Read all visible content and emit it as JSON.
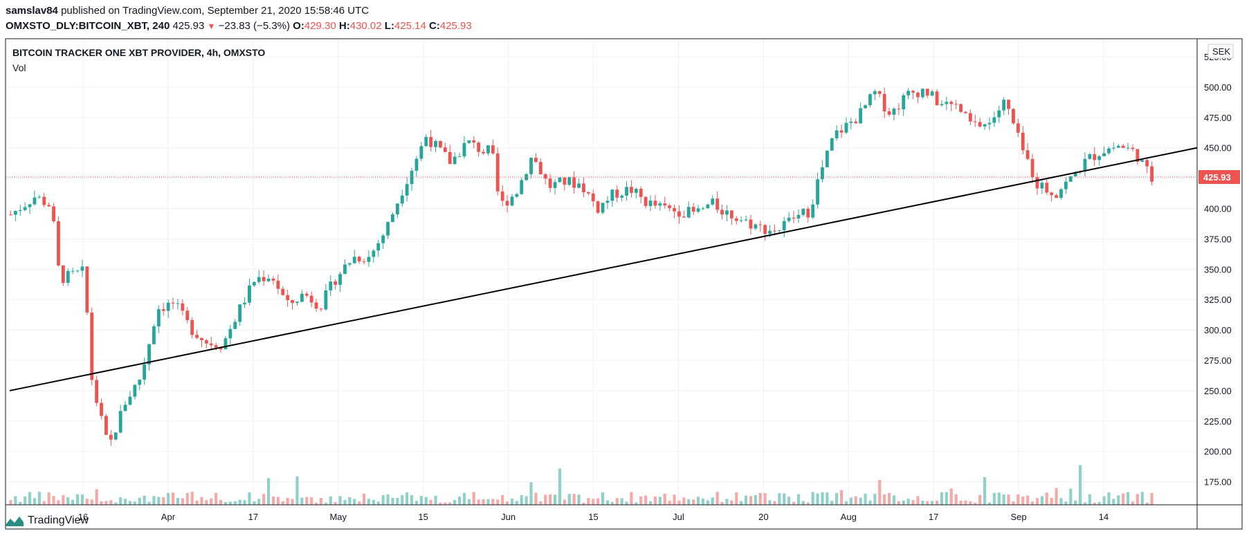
{
  "header": {
    "user": "samslav84",
    "published_text": "published on TradingView.com, September 21, 2020 15:58:46 UTC",
    "symbol": "OMXSTO_DLY:BITCOIN_XBT, 240",
    "last": "425.93",
    "change": "−23.83 (−5.3%)",
    "open_label": "O:",
    "open": "429.30",
    "high_label": "H:",
    "high": "430.02",
    "low_label": "L:",
    "low": "425.14",
    "close_label": "C:",
    "close": "425.93"
  },
  "pane": {
    "title": "BITCOIN TRACKER ONE XBT PROVIDER, 4h, OMXSTO",
    "indicator": "Vol",
    "currency": "SEK",
    "last_price_label": "425.93"
  },
  "colors": {
    "up": "#26a69a",
    "down": "#ef5350",
    "grid": "#edf0f4",
    "axis": "#131722"
  },
  "brand": {
    "name": "TradingView",
    "icon": "tradingview-logo-icon"
  },
  "chart_data": {
    "type": "candlestick",
    "title": "BITCOIN TRACKER ONE XBT PROVIDER, 4h, OMXSTO",
    "ylim": [
      156,
      533
    ],
    "y_ticks": [
      "525.00",
      "500.00",
      "475.00",
      "450.00",
      "425.00",
      "400.00",
      "375.00",
      "350.00",
      "325.00",
      "300.00",
      "275.00",
      "250.00",
      "225.00",
      "200.00",
      "175.00"
    ],
    "x_ticks": [
      "16",
      "Apr",
      "17",
      "May",
      "15",
      "Jun",
      "15",
      "Jul",
      "20",
      "Aug",
      "17",
      "Sep",
      "14"
    ],
    "last_price": 425.93,
    "price_path": [
      [
        0,
        395
      ],
      [
        3,
        410
      ],
      [
        5,
        402
      ],
      [
        6,
        342
      ],
      [
        9,
        348
      ],
      [
        10,
        256
      ],
      [
        12,
        202
      ],
      [
        14,
        240
      ],
      [
        16,
        262
      ],
      [
        18,
        318
      ],
      [
        20,
        322
      ],
      [
        22,
        302
      ],
      [
        24,
        290
      ],
      [
        26,
        288
      ],
      [
        28,
        316
      ],
      [
        30,
        342
      ],
      [
        32,
        345
      ],
      [
        34,
        320
      ],
      [
        36,
        330
      ],
      [
        38,
        320
      ],
      [
        40,
        344
      ],
      [
        42,
        360
      ],
      [
        44,
        360
      ],
      [
        46,
        382
      ],
      [
        48,
        415
      ],
      [
        51,
        460
      ],
      [
        52,
        452
      ],
      [
        54,
        438
      ],
      [
        56,
        455
      ],
      [
        58,
        447
      ],
      [
        59,
        448
      ],
      [
        60,
        402
      ],
      [
        62,
        413
      ],
      [
        64,
        444
      ],
      [
        66,
        418
      ],
      [
        68,
        422
      ],
      [
        70,
        420
      ],
      [
        72,
        400
      ],
      [
        74,
        412
      ],
      [
        76,
        416
      ],
      [
        78,
        405
      ],
      [
        80,
        400
      ],
      [
        82,
        398
      ],
      [
        84,
        396
      ],
      [
        86,
        404
      ],
      [
        88,
        396
      ],
      [
        90,
        390
      ],
      [
        92,
        384
      ],
      [
        94,
        382
      ],
      [
        96,
        392
      ],
      [
        98,
        398
      ],
      [
        99,
        422
      ],
      [
        101,
        460
      ],
      [
        104,
        476
      ],
      [
        106,
        495
      ],
      [
        108,
        478
      ],
      [
        110,
        494
      ],
      [
        112,
        498
      ],
      [
        114,
        486
      ],
      [
        116,
        484
      ],
      [
        118,
        468
      ],
      [
        120,
        470
      ],
      [
        122,
        488
      ],
      [
        124,
        450
      ],
      [
        126,
        420
      ],
      [
        128,
        412
      ],
      [
        130,
        424
      ],
      [
        132,
        440
      ],
      [
        134,
        448
      ],
      [
        136,
        452
      ],
      [
        138,
        446
      ],
      [
        140,
        424
      ]
    ],
    "volume_range": [
      0,
      100
    ],
    "trendline": {
      "from": [
        "start",
        250
      ],
      "to": [
        "end",
        450
      ]
    }
  }
}
